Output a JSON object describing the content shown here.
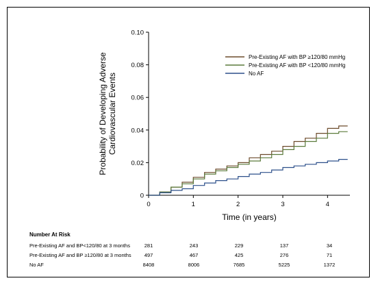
{
  "chart_data": {
    "type": "line",
    "xlabel": "Time (in years)",
    "ylabel": [
      "Probability of Developing Adverse",
      "Cardiovascular Events"
    ],
    "xlim": [
      0,
      4.5
    ],
    "ylim": [
      0,
      0.1
    ],
    "xticks": [
      "0",
      "1",
      "2",
      "3",
      "4"
    ],
    "yticks": [
      "0",
      "0.02",
      "0.04",
      "0.06",
      "0.08",
      "0.10"
    ],
    "grid": false,
    "legend_position": "top-right",
    "series": [
      {
        "name": "Pre-Existing AF with BP ≥120/80 mmHg",
        "color": "#6b4a2a",
        "step": true,
        "x": [
          0,
          0.25,
          0.5,
          0.75,
          1.0,
          1.25,
          1.5,
          1.75,
          2.0,
          2.25,
          2.5,
          2.75,
          3.0,
          3.25,
          3.5,
          3.75,
          4.0,
          4.25,
          4.45
        ],
        "y": [
          0,
          0.002,
          0.005,
          0.008,
          0.011,
          0.014,
          0.016,
          0.018,
          0.02,
          0.023,
          0.025,
          0.027,
          0.03,
          0.033,
          0.035,
          0.038,
          0.041,
          0.0425,
          0.0425
        ]
      },
      {
        "name": "Pre-Existing AF with BP <120/80 mmHg",
        "color": "#5a7a3a",
        "step": true,
        "x": [
          0,
          0.25,
          0.5,
          0.75,
          1.0,
          1.25,
          1.5,
          1.75,
          2.0,
          2.25,
          2.5,
          2.75,
          3.0,
          3.25,
          3.5,
          3.75,
          4.0,
          4.25,
          4.45
        ],
        "y": [
          0,
          0.002,
          0.005,
          0.007,
          0.01,
          0.013,
          0.015,
          0.017,
          0.019,
          0.021,
          0.023,
          0.025,
          0.028,
          0.03,
          0.033,
          0.035,
          0.038,
          0.039,
          0.039
        ]
      },
      {
        "name": "No AF",
        "color": "#2b4f8a",
        "step": true,
        "x": [
          0,
          0.25,
          0.5,
          0.75,
          1.0,
          1.25,
          1.5,
          1.75,
          2.0,
          2.25,
          2.5,
          2.75,
          3.0,
          3.25,
          3.5,
          3.75,
          4.0,
          4.25,
          4.45
        ],
        "y": [
          0,
          0.0015,
          0.003,
          0.004,
          0.006,
          0.0075,
          0.009,
          0.01,
          0.0115,
          0.013,
          0.014,
          0.0155,
          0.017,
          0.018,
          0.019,
          0.02,
          0.021,
          0.022,
          0.022
        ]
      }
    ],
    "risk_table": {
      "title": "Number At Risk",
      "rows": [
        {
          "label": "Pre-Existing AF and BP<120/80 at 3 months",
          "values": [
            "281",
            "243",
            "229",
            "137",
            "34"
          ]
        },
        {
          "label": "Pre-Existing AF and BP ≥120/80 at 3 months",
          "values": [
            "497",
            "467",
            "425",
            "276",
            "71"
          ]
        },
        {
          "label": "No AF",
          "values": [
            "8408",
            "8006",
            "7685",
            "5225",
            "1372"
          ]
        }
      ]
    }
  }
}
